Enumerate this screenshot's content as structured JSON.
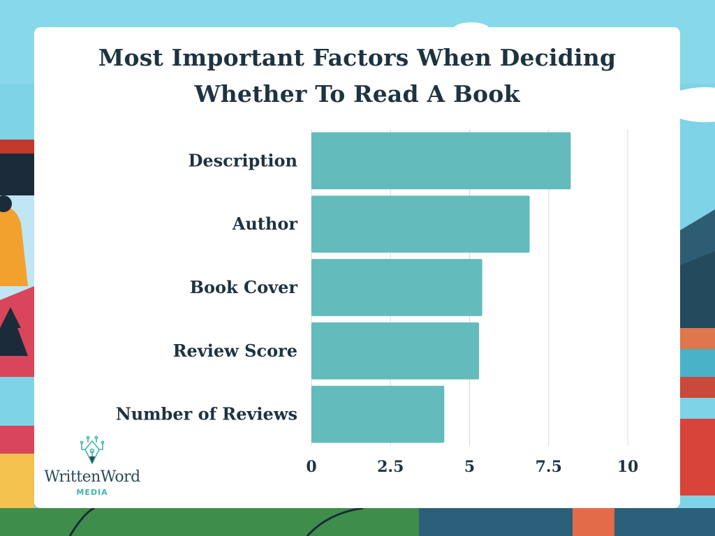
{
  "chart_data": {
    "type": "bar",
    "orientation": "horizontal",
    "title": "Most Important Factors When Deciding Whether To Read A Book",
    "title_lines": [
      "Most Important Factors When Deciding",
      "Whether To Read A Book"
    ],
    "categories": [
      "Description",
      "Author",
      "Book Cover",
      "Review Score",
      "Number of Reviews"
    ],
    "values": [
      8.2,
      6.9,
      5.4,
      5.3,
      4.2
    ],
    "xlim": [
      0,
      10
    ],
    "xticks": [
      0,
      2.5,
      5,
      7.5,
      10
    ],
    "xtick_labels": [
      "0",
      "2.5",
      "5",
      "7.5",
      "10"
    ],
    "xlabel": "",
    "ylabel": "",
    "grid": "vertical",
    "legend": "none",
    "bar_color": "#63bbbb"
  },
  "colors": {
    "title": "#1e3340",
    "labels": "#1e3340",
    "gridline": "#d8d8d8",
    "card": "#ffffff",
    "background": "#7fd3e6"
  },
  "logo": {
    "name": "WrittenWord",
    "sub": "MEDIA",
    "icon": "pen-nib-circuit-icon"
  }
}
